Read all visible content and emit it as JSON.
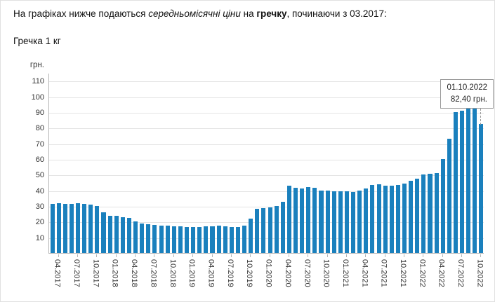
{
  "header": {
    "text_1": "На графіках нижче подаються ",
    "text_2_italic": "середньомісячні ціни",
    "text_3": " на ",
    "text_4_bold": "гречку",
    "text_5": ", починаючи з 03.2017:"
  },
  "subtitle": "Гречка 1 кг",
  "chart_data": {
    "type": "bar",
    "title": "Гречка 1 кг",
    "ylabel": "грн.",
    "ylim": [
      0,
      115
    ],
    "yticks": [
      10,
      20,
      30,
      40,
      50,
      60,
      70,
      80,
      90,
      100,
      110
    ],
    "grid": true,
    "bar_color": "#1a80bd",
    "x": [
      "03.2017",
      "04.2017",
      "05.2017",
      "06.2017",
      "07.2017",
      "08.2017",
      "09.2017",
      "10.2017",
      "11.2017",
      "12.2017",
      "01.2018",
      "02.2018",
      "03.2018",
      "04.2018",
      "05.2018",
      "06.2018",
      "07.2018",
      "08.2018",
      "09.2018",
      "10.2018",
      "11.2018",
      "12.2018",
      "01.2019",
      "02.2019",
      "03.2019",
      "04.2019",
      "05.2019",
      "06.2019",
      "07.2019",
      "08.2019",
      "09.2019",
      "10.2019",
      "11.2019",
      "12.2019",
      "01.2020",
      "02.2020",
      "03.2020",
      "04.2020",
      "05.2020",
      "06.2020",
      "07.2020",
      "08.2020",
      "09.2020",
      "10.2020",
      "11.2020",
      "12.2020",
      "01.2021",
      "02.2021",
      "03.2021",
      "04.2021",
      "05.2021",
      "06.2021",
      "07.2021",
      "08.2021",
      "09.2021",
      "10.2021",
      "11.2021",
      "12.2021",
      "01.2022",
      "02.2022",
      "03.2022",
      "04.2022",
      "05.2022",
      "06.2022",
      "07.2022",
      "08.2022",
      "09.2022",
      "10.2022"
    ],
    "values": [
      31.5,
      32,
      31.5,
      31.5,
      32,
      31.5,
      31,
      30,
      26,
      23.5,
      23.5,
      23,
      22.5,
      20,
      19,
      18.5,
      18,
      17.5,
      17.5,
      17,
      17,
      16.5,
      16.5,
      16.5,
      17,
      17,
      17.5,
      17,
      16.5,
      16.5,
      17.5,
      22,
      28,
      28.5,
      29,
      30,
      32.5,
      43,
      41.5,
      41,
      42,
      41.5,
      40,
      40,
      39.5,
      39.5,
      39.5,
      39,
      40,
      41,
      43.5,
      44,
      43,
      43,
      43.5,
      44.5,
      46,
      47.5,
      50,
      50.5,
      51,
      60,
      73,
      90,
      91,
      93,
      93,
      82.4
    ],
    "xtick_labels": [
      "04.2017",
      "07.2017",
      "10.2017",
      "01.2018",
      "04.2018",
      "07.2018",
      "10.2018",
      "01.2019",
      "04.2019",
      "07.2019",
      "10.2019",
      "01.2020",
      "04.2020",
      "07.2020",
      "10.2020",
      "01.2021",
      "04.2021",
      "07.2021",
      "10.2021",
      "01.2022",
      "04.2022",
      "07.2022",
      "10.2022"
    ],
    "annotation": {
      "date": "01.10.2022",
      "value_label": "82,40 грн."
    }
  }
}
